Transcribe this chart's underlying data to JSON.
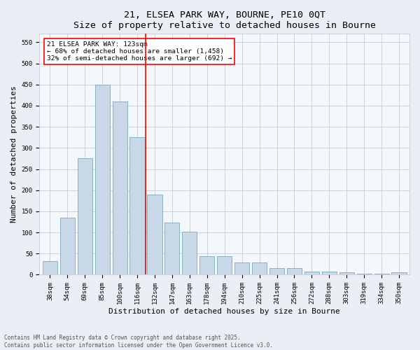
{
  "title1": "21, ELSEA PARK WAY, BOURNE, PE10 0QT",
  "title2": "Size of property relative to detached houses in Bourne",
  "xlabel": "Distribution of detached houses by size in Bourne",
  "ylabel": "Number of detached properties",
  "categories": [
    "38sqm",
    "54sqm",
    "69sqm",
    "85sqm",
    "100sqm",
    "116sqm",
    "132sqm",
    "147sqm",
    "163sqm",
    "178sqm",
    "194sqm",
    "210sqm",
    "225sqm",
    "241sqm",
    "256sqm",
    "272sqm",
    "288sqm",
    "303sqm",
    "319sqm",
    "334sqm",
    "350sqm"
  ],
  "values": [
    33,
    135,
    275,
    450,
    410,
    325,
    190,
    124,
    101,
    44,
    44,
    29,
    29,
    15,
    15,
    8,
    8,
    5,
    3,
    3,
    6
  ],
  "bar_color": "#c8d8e8",
  "bar_edge_color": "#7aaabb",
  "vline_x": 5.5,
  "vline_color": "red",
  "annotation_line1": "21 ELSEA PARK WAY: 123sqm",
  "annotation_line2": "← 68% of detached houses are smaller (1,458)",
  "annotation_line3": "32% of semi-detached houses are larger (692) →",
  "box_edge_color": "red",
  "footer1": "Contains HM Land Registry data © Crown copyright and database right 2025.",
  "footer2": "Contains public sector information licensed under the Open Government Licence v3.0.",
  "ylim": [
    0,
    570
  ],
  "yticks": [
    0,
    50,
    100,
    150,
    200,
    250,
    300,
    350,
    400,
    450,
    500,
    550
  ],
  "bg_color": "#eaeff5",
  "plot_bg_color": "#f4f7fc",
  "grid_color": "#c5cdd8",
  "title_fontsize": 9.5,
  "tick_fontsize": 6.5,
  "label_fontsize": 8,
  "footer_fontsize": 5.5,
  "annot_fontsize": 6.8
}
